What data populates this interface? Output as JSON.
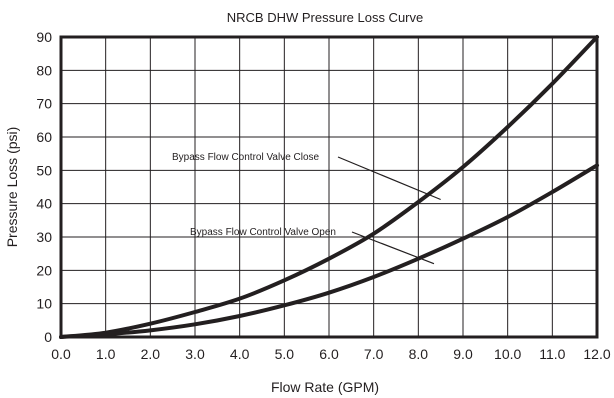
{
  "chart_data": {
    "type": "line",
    "title": "NRCB DHW Pressure Loss Curve",
    "xlabel": "Flow Rate (GPM)",
    "ylabel": "Pressure Loss (psi)",
    "xlim": [
      0,
      12
    ],
    "ylim": [
      0,
      90
    ],
    "xticks": [
      "0.0",
      "1.0",
      "2.0",
      "3.0",
      "4.0",
      "5.0",
      "6.0",
      "7.0",
      "8.0",
      "9.0",
      "10.0",
      "11.0",
      "12.0"
    ],
    "yticks": [
      "0",
      "10",
      "20",
      "30",
      "40",
      "50",
      "60",
      "70",
      "80",
      "90"
    ],
    "grid": true,
    "series": [
      {
        "name": "Bypass Flow Control Valve Close",
        "x": [
          0,
          1,
          2,
          3,
          4,
          5,
          6,
          7,
          8,
          9,
          10,
          11,
          12
        ],
        "y": [
          0,
          1.3,
          4.0,
          7.5,
          11.5,
          17.0,
          23.5,
          31.0,
          40.5,
          51.0,
          63.0,
          76.0,
          90.0
        ]
      },
      {
        "name": "Bypass Flow Control Valve Open",
        "x": [
          0,
          1,
          2,
          3,
          4,
          5,
          6,
          7,
          8,
          9,
          10,
          11,
          12
        ],
        "y": [
          0,
          0.8,
          2.0,
          3.8,
          6.3,
          9.5,
          13.3,
          18.0,
          23.5,
          29.5,
          36.0,
          43.5,
          51.5
        ]
      }
    ],
    "annotations": [
      {
        "text": "Bypass Flow Control Valve Close",
        "series": 0
      },
      {
        "text": "Bypass Flow Control Valve Open",
        "series": 1
      }
    ],
    "colors": {
      "line": "#231f20",
      "grid": "#231f20",
      "text": "#231f20"
    }
  }
}
